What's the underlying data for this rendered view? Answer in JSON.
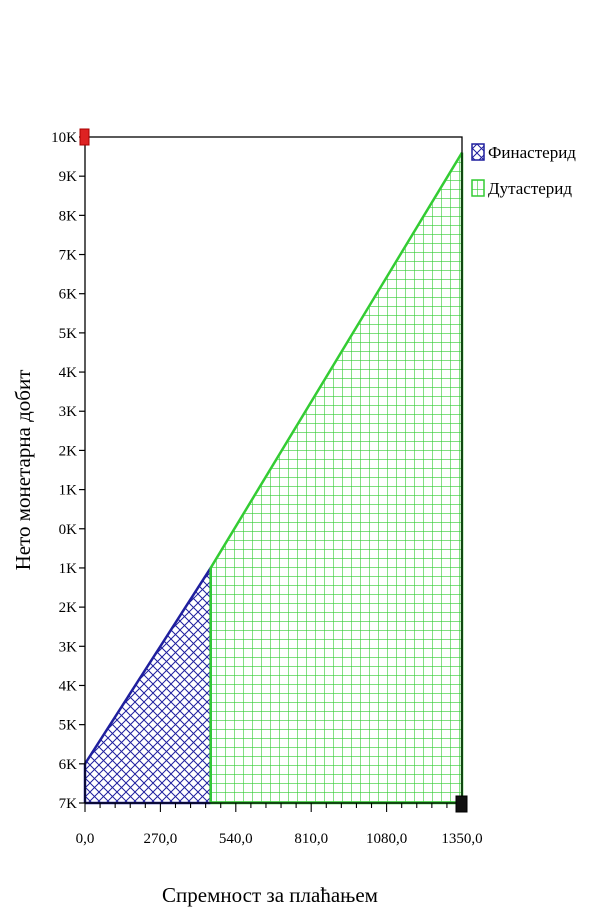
{
  "chart_data": {
    "type": "area",
    "title": "",
    "xlabel": "Спремност за плаћањем",
    "ylabel": "Нето монетарна добит",
    "xlim": [
      0,
      1350
    ],
    "ylim": [
      -7000,
      10000
    ],
    "grid": false,
    "legend_position": "top-right",
    "x_ticks": [
      {
        "value": 0,
        "label": "0,0"
      },
      {
        "value": 270,
        "label": "270,0"
      },
      {
        "value": 540,
        "label": "540,0"
      },
      {
        "value": 810,
        "label": "810,0"
      },
      {
        "value": 1080,
        "label": "1080,0"
      },
      {
        "value": 1350,
        "label": "1350,0"
      }
    ],
    "y_ticks": [
      {
        "value": 10000,
        "label": "10K"
      },
      {
        "value": 9000,
        "label": "9K"
      },
      {
        "value": 8000,
        "label": "8K"
      },
      {
        "value": 7000,
        "label": "7K"
      },
      {
        "value": 6000,
        "label": "6K"
      },
      {
        "value": 5000,
        "label": "5K"
      },
      {
        "value": 4000,
        "label": "4K"
      },
      {
        "value": 3000,
        "label": "3K"
      },
      {
        "value": 2000,
        "label": "2K"
      },
      {
        "value": 1000,
        "label": "1K"
      },
      {
        "value": 0,
        "label": "0K"
      },
      {
        "value": -1000,
        "label": "1K"
      },
      {
        "value": -2000,
        "label": "2K"
      },
      {
        "value": -3000,
        "label": "3K"
      },
      {
        "value": -4000,
        "label": "4K"
      },
      {
        "value": -5000,
        "label": "5K"
      },
      {
        "value": -6000,
        "label": "6K"
      },
      {
        "value": -7000,
        "label": "7K"
      }
    ],
    "series": [
      {
        "name": "Финастерид",
        "color": "#1f1f9e",
        "pattern": "crosshatch",
        "points": [
          {
            "x": 0,
            "y": -6000
          },
          {
            "x": 450,
            "y": -1000
          }
        ]
      },
      {
        "name": "Дутастерид",
        "color": "#33cc33",
        "pattern": "grid",
        "points": [
          {
            "x": 450,
            "y": -1000
          },
          {
            "x": 1350,
            "y": 9600
          }
        ]
      }
    ]
  }
}
